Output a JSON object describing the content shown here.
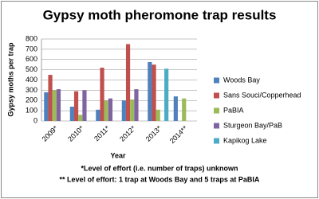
{
  "chart_data": {
    "type": "bar",
    "title": "Gypsy moth pheromone trap results",
    "y_label": "Gypsy moths per trap",
    "x_label": "Year",
    "notes": [
      "*Level of effort (i.e. number of traps) unknown",
      "** Level of effort: 1 trap at Woods Bay and 5 traps at PaBIA"
    ],
    "categories": [
      "2009*",
      "2010*",
      "2011*",
      "2012*",
      "2013*",
      "2014**"
    ],
    "series": [
      {
        "name": "Woods Bay",
        "color": "#4f81bd",
        "values": [
          280,
          140,
          110,
          200,
          575,
          240
        ]
      },
      {
        "name": "Sans Souci/Copperhead",
        "color": "#c0504d",
        "values": [
          450,
          290,
          520,
          750,
          550,
          null
        ]
      },
      {
        "name": "PaBIA",
        "color": "#9bbb59",
        "values": [
          300,
          60,
          200,
          210,
          110,
          220
        ]
      },
      {
        "name": "Sturgeon Bay/PaB",
        "color": "#8064a2",
        "values": [
          310,
          300,
          220,
          310,
          null,
          null
        ]
      },
      {
        "name": "Kapikog Lake",
        "color": "#4bacc6",
        "values": [
          null,
          null,
          null,
          null,
          510,
          null
        ]
      }
    ],
    "ylim": [
      0,
      800
    ],
    "yticks": [
      0,
      100,
      200,
      300,
      400,
      500,
      600,
      700,
      800
    ],
    "grid": true,
    "legend": "right"
  }
}
